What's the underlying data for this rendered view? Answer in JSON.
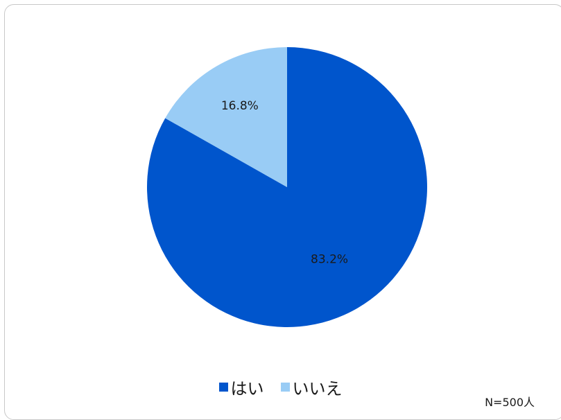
{
  "chart_data": {
    "type": "pie",
    "categories": [
      "はい",
      "いいえ"
    ],
    "values": [
      83.2,
      16.8
    ],
    "data_labels": [
      "83.2%",
      "16.8%"
    ],
    "colors": [
      "#0055cc",
      "#99ccf5"
    ],
    "start_angle": "12 o'clock, clockwise",
    "legend": {
      "position": "bottom",
      "entries": [
        "はい",
        "いいえ"
      ]
    },
    "note": "N=500人"
  }
}
